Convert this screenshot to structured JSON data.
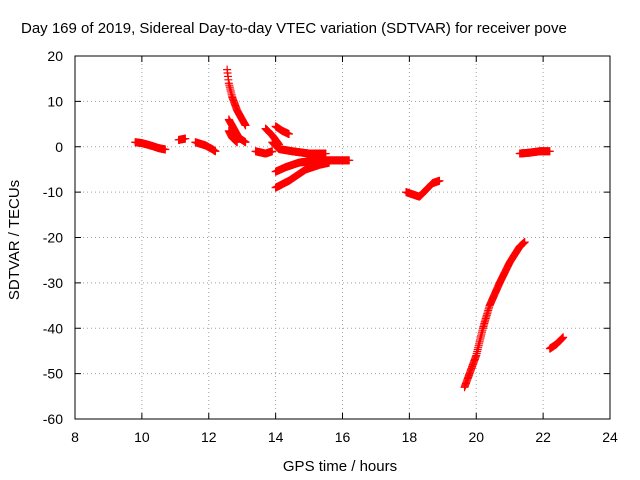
{
  "chart_data": {
    "type": "scatter",
    "title": "Day 169 of 2019, Sidereal Day-to-day VTEC variation (SDTVAR) for receiver pove",
    "xlabel": "GPS time / hours",
    "ylabel": "SDTVAR / TECUs",
    "xlim": [
      8,
      24
    ],
    "ylim": [
      -60,
      20
    ],
    "xticks": [
      8,
      10,
      12,
      14,
      16,
      18,
      20,
      22,
      24
    ],
    "yticks": [
      -60,
      -50,
      -40,
      -30,
      -20,
      -10,
      0,
      10,
      20
    ],
    "grid": true,
    "marker": "plus",
    "color": "#ff0000",
    "series": [
      {
        "segments": [
          [
            [
              9.8,
              1.0
            ],
            [
              10.0,
              0.8
            ],
            [
              10.3,
              0.2
            ],
            [
              10.5,
              -0.3
            ],
            [
              10.7,
              -0.6
            ]
          ],
          [
            [
              11.1,
              1.5
            ],
            [
              11.3,
              1.8
            ]
          ],
          [
            [
              11.6,
              1.0
            ],
            [
              11.9,
              0.3
            ],
            [
              12.1,
              -0.5
            ],
            [
              12.2,
              -1.0
            ]
          ],
          [
            [
              12.55,
              17.0
            ],
            [
              12.6,
              14.0
            ],
            [
              12.7,
              11.0
            ],
            [
              12.85,
              8.0
            ],
            [
              13.0,
              6.0
            ],
            [
              13.1,
              4.7
            ]
          ],
          [
            [
              12.6,
              6.0
            ],
            [
              12.75,
              4.0
            ],
            [
              12.9,
              2.0
            ],
            [
              13.1,
              1.0
            ]
          ],
          [
            [
              12.6,
              3.5
            ],
            [
              12.7,
              2.0
            ],
            [
              12.85,
              1.0
            ]
          ],
          [
            [
              13.4,
              -1.0
            ],
            [
              13.7,
              -1.5
            ],
            [
              13.9,
              -1.0
            ]
          ],
          [
            [
              13.7,
              4.0
            ],
            [
              13.9,
              2.5
            ],
            [
              14.1,
              0.5
            ]
          ],
          [
            [
              14.0,
              4.5
            ],
            [
              14.2,
              3.5
            ],
            [
              14.4,
              2.8
            ]
          ],
          [
            [
              13.9,
              1.0
            ],
            [
              14.1,
              -0.5
            ],
            [
              14.5,
              -1.0
            ],
            [
              15.0,
              -1.5
            ],
            [
              15.5,
              -1.5
            ]
          ],
          [
            [
              14.0,
              -5.5
            ],
            [
              14.3,
              -4.5
            ],
            [
              14.7,
              -3.5
            ],
            [
              15.2,
              -3.0
            ],
            [
              15.7,
              -3.0
            ],
            [
              16.2,
              -3.0
            ]
          ],
          [
            [
              14.0,
              -9.0
            ],
            [
              14.4,
              -7.5
            ],
            [
              14.9,
              -5.0
            ],
            [
              15.3,
              -4.0
            ],
            [
              15.6,
              -3.5
            ]
          ],
          [
            [
              17.9,
              -10.0
            ],
            [
              18.1,
              -10.5
            ],
            [
              18.3,
              -11.0
            ],
            [
              18.5,
              -9.5
            ],
            [
              18.7,
              -8.0
            ],
            [
              18.9,
              -7.5
            ]
          ],
          [
            [
              19.65,
              -53.0
            ],
            [
              19.8,
              -50.0
            ],
            [
              20.0,
              -46.0
            ],
            [
              20.2,
              -40.0
            ],
            [
              20.4,
              -35.0
            ],
            [
              20.7,
              -30.0
            ],
            [
              21.0,
              -25.5
            ],
            [
              21.3,
              -22.0
            ],
            [
              21.45,
              -21.0
            ]
          ],
          [
            [
              21.3,
              -1.5
            ],
            [
              21.6,
              -1.3
            ],
            [
              21.9,
              -1.0
            ],
            [
              22.2,
              -1.0
            ]
          ],
          [
            [
              22.2,
              -44.5
            ],
            [
              22.4,
              -43.5
            ],
            [
              22.6,
              -42.0
            ]
          ]
        ]
      }
    ]
  }
}
